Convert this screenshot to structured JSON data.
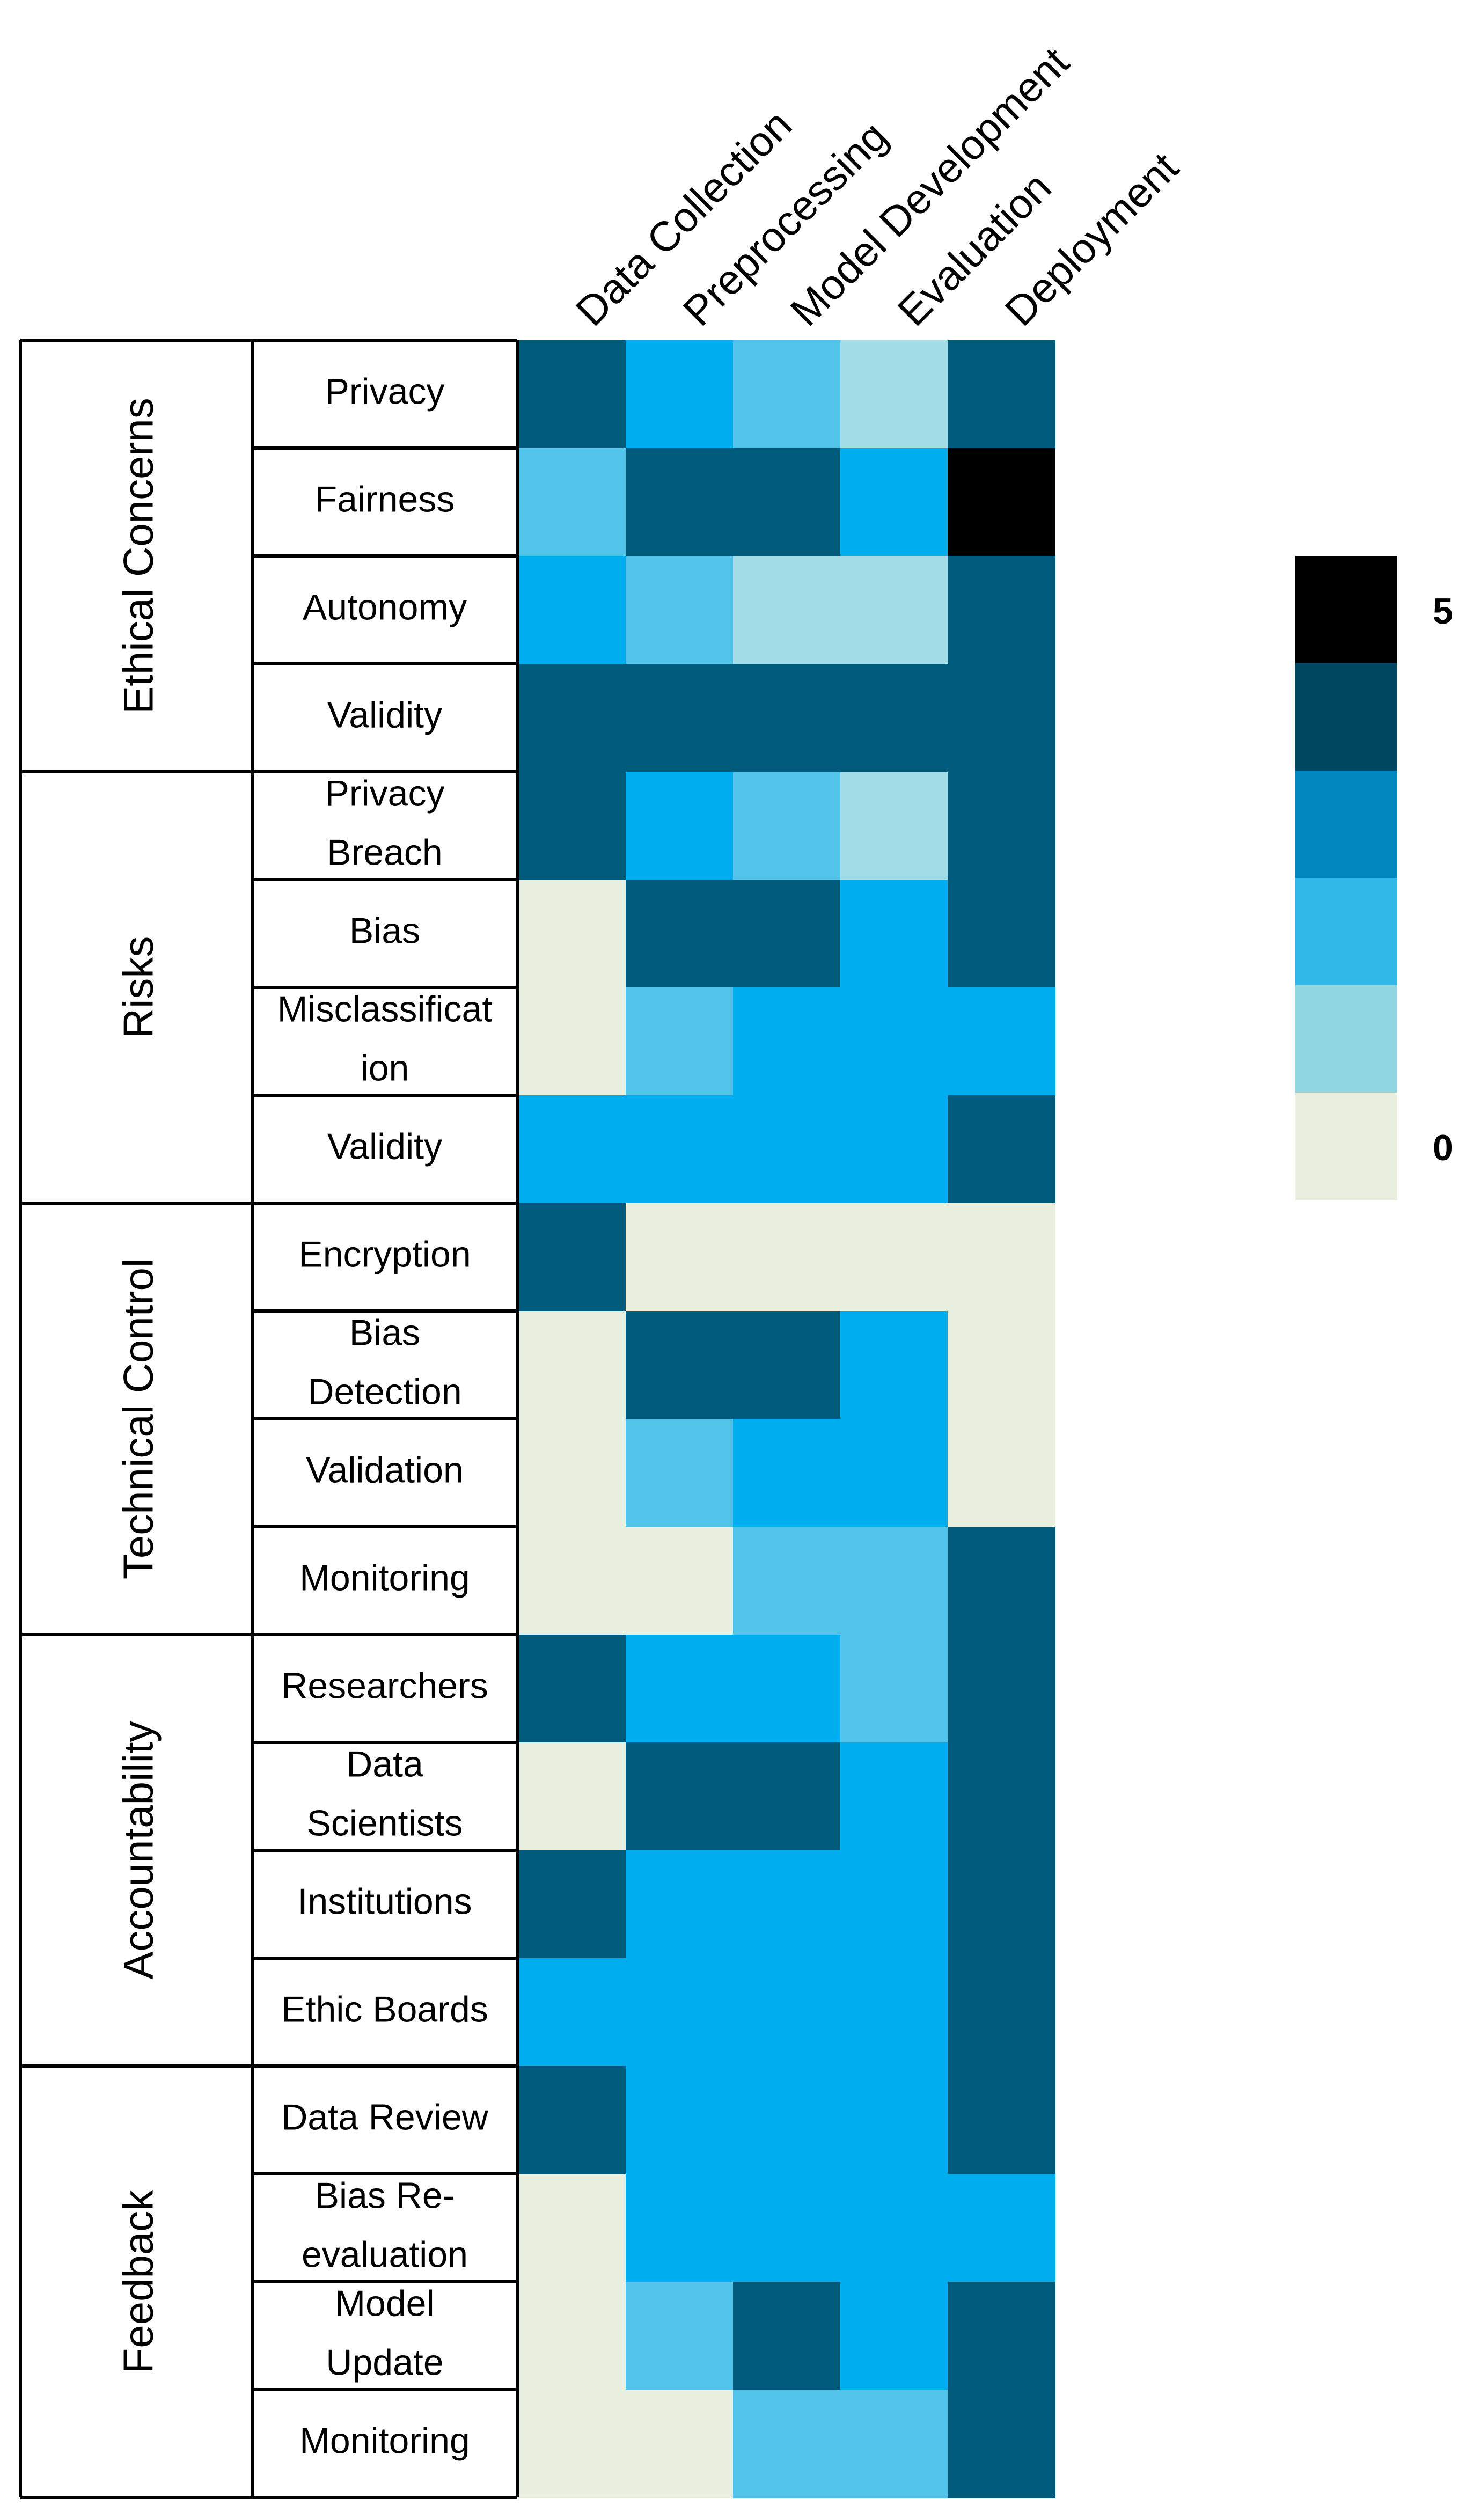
{
  "chart_data": {
    "type": "heatmap",
    "title": "",
    "columns": [
      "Data Collection",
      "Preprocessing",
      "Model Development",
      "Evaluation",
      "Deployment"
    ],
    "groups": [
      {
        "name": "Ethical Concerns",
        "rows": [
          {
            "label": [
              "Privacy"
            ],
            "values": [
              4,
              3,
              2,
              1,
              4
            ]
          },
          {
            "label": [
              "Fairness"
            ],
            "values": [
              2,
              4,
              4,
              3,
              5
            ]
          },
          {
            "label": [
              "Autonomy"
            ],
            "values": [
              3,
              2,
              1,
              1,
              4
            ]
          },
          {
            "label": [
              "Validity"
            ],
            "values": [
              4,
              4,
              4,
              4,
              4
            ]
          }
        ]
      },
      {
        "name": "Risks",
        "rows": [
          {
            "label": [
              "Privacy",
              "Breach"
            ],
            "values": [
              4,
              3,
              2,
              1,
              4
            ]
          },
          {
            "label": [
              "Bias"
            ],
            "values": [
              0,
              4,
              4,
              3,
              4
            ]
          },
          {
            "label": [
              "Misclassificat",
              "ion"
            ],
            "values": [
              0,
              2,
              3,
              3,
              3
            ]
          },
          {
            "label": [
              "Validity"
            ],
            "values": [
              3,
              3,
              3,
              3,
              4
            ]
          }
        ]
      },
      {
        "name": "Technical Control",
        "rows": [
          {
            "label": [
              "Encryption"
            ],
            "values": [
              4,
              0,
              0,
              0,
              0
            ]
          },
          {
            "label": [
              "Bias",
              "Detection"
            ],
            "values": [
              0,
              4,
              4,
              3,
              0
            ]
          },
          {
            "label": [
              "Validation"
            ],
            "values": [
              0,
              2,
              3,
              3,
              0
            ]
          },
          {
            "label": [
              "Monitoring"
            ],
            "values": [
              0,
              0,
              2,
              2,
              4
            ]
          }
        ]
      },
      {
        "name": "Accountability",
        "rows": [
          {
            "label": [
              "Researchers"
            ],
            "values": [
              4,
              3,
              3,
              2,
              4
            ]
          },
          {
            "label": [
              "Data",
              "Scientists"
            ],
            "values": [
              0,
              4,
              4,
              3,
              4
            ]
          },
          {
            "label": [
              "Institutions"
            ],
            "values": [
              4,
              3,
              3,
              3,
              4
            ]
          },
          {
            "label": [
              "Ethic Boards"
            ],
            "values": [
              3,
              3,
              3,
              3,
              4
            ]
          }
        ]
      },
      {
        "name": "Feedback",
        "rows": [
          {
            "label": [
              "Data Review"
            ],
            "values": [
              4,
              3,
              3,
              3,
              4
            ]
          },
          {
            "label": [
              "Bias Re-",
              "evaluation"
            ],
            "values": [
              0,
              3,
              3,
              3,
              3
            ]
          },
          {
            "label": [
              "Model",
              "Update"
            ],
            "values": [
              0,
              2,
              4,
              3,
              4
            ]
          },
          {
            "label": [
              "Monitoring"
            ],
            "values": [
              0,
              0,
              2,
              2,
              4
            ]
          }
        ]
      }
    ],
    "value_range": [
      0,
      5
    ],
    "cell_colors": [
      "#e9f0df",
      "#a2dce6",
      "#52c4ea",
      "#00aeef",
      "#005a7c",
      "#000000"
    ],
    "colorbar": {
      "min_label": "0",
      "max_label": "5",
      "colors": [
        "#e9f0df",
        "#8fd6e2",
        "#32b8e8",
        "#0188be",
        "#004761",
        "#000000"
      ]
    }
  }
}
